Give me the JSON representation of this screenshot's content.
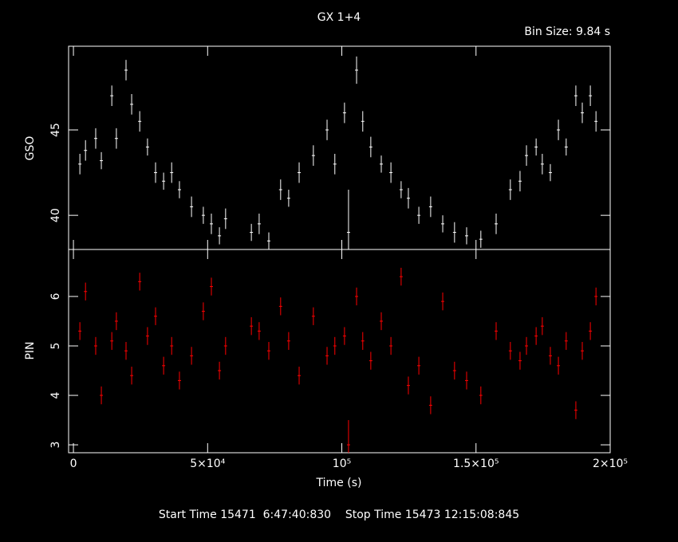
{
  "chart_data": [
    {
      "type": "errorbar",
      "title": "GX 1+4",
      "subtitle": "Bin Size: 9.84 s",
      "ylabel": "GSO",
      "color": "#ffffff",
      "xlim": [
        -1800,
        200000
      ],
      "ylim": [
        38,
        49.9
      ],
      "yticks": [
        40,
        45
      ],
      "x": [
        2400,
        4500,
        8300,
        10400,
        14300,
        16000,
        19600,
        21700,
        24700,
        27600,
        30600,
        33600,
        36600,
        39500,
        44000,
        48400,
        51400,
        54400,
        56700,
        66300,
        69200,
        72800,
        77200,
        80200,
        84100,
        89400,
        94500,
        97400,
        101000,
        102500,
        105500,
        107800,
        110800,
        114700,
        118300,
        122100,
        124800,
        128700,
        133100,
        137600,
        142000,
        146500,
        151800,
        157500,
        162800,
        166400,
        168800,
        172400,
        174700,
        177700,
        180700,
        183600,
        187200,
        189600,
        192600,
        194700
      ],
      "values": [
        43,
        43.8,
        44.5,
        43.2,
        47,
        44.5,
        48.5,
        46.5,
        45.5,
        44,
        42.5,
        42,
        42.5,
        41.5,
        40.5,
        40,
        39.5,
        38.8,
        39.8,
        39,
        39.5,
        38.5,
        41.5,
        41,
        42.5,
        43.5,
        45,
        43,
        46,
        39,
        48.5,
        45.5,
        44,
        43,
        42.5,
        41.5,
        41,
        40,
        40.5,
        39.5,
        39,
        38.8,
        38.6,
        39.5,
        41.5,
        42,
        43.5,
        44,
        43,
        42.5,
        45,
        44,
        47,
        46,
        47,
        45.5
      ],
      "errors": [
        0.6,
        0.6,
        0.6,
        0.5,
        0.6,
        0.6,
        0.6,
        0.6,
        0.6,
        0.5,
        0.6,
        0.5,
        0.6,
        0.5,
        0.6,
        0.5,
        0.6,
        0.5,
        0.6,
        0.5,
        0.6,
        0.5,
        0.6,
        0.5,
        0.6,
        0.6,
        0.6,
        0.6,
        0.6,
        2.5,
        0.8,
        0.6,
        0.6,
        0.5,
        0.6,
        0.5,
        0.6,
        0.5,
        0.6,
        0.5,
        0.6,
        0.5,
        0.5,
        0.6,
        0.6,
        0.6,
        0.6,
        0.5,
        0.6,
        0.5,
        0.6,
        0.5,
        0.6,
        0.6,
        0.6,
        0.6
      ]
    },
    {
      "type": "errorbar",
      "ylabel": "PIN",
      "xlabel": "Time (s)",
      "color": "#ff0000",
      "annotation": "Start Time 15471  6:47:40:830    Stop Time 15473 12:15:08:845",
      "xlim": [
        -1800,
        200000
      ],
      "ylim": [
        2.84,
        6.95
      ],
      "yticks": [
        3,
        4,
        5,
        6
      ],
      "xticks": [
        0,
        {
          "value": 50000,
          "label": "5×10⁴"
        },
        {
          "value": 100000,
          "label": "10⁵"
        },
        {
          "value": 150000,
          "label": "1.5×10⁵"
        },
        {
          "value": 200000,
          "label": "2×10⁵"
        }
      ],
      "x": [
        2400,
        4500,
        8300,
        10400,
        14300,
        16000,
        19600,
        21700,
        24700,
        27600,
        30600,
        33600,
        36600,
        39500,
        44000,
        48400,
        51400,
        54400,
        56700,
        66300,
        69200,
        72800,
        77200,
        80200,
        84100,
        89400,
        94500,
        97400,
        101000,
        102500,
        105500,
        107800,
        110800,
        114700,
        118300,
        122100,
        124800,
        128700,
        133100,
        137600,
        142000,
        146500,
        151800,
        157500,
        162800,
        166400,
        168800,
        172400,
        174700,
        177700,
        180700,
        183600,
        187200,
        189600,
        192600,
        194700
      ],
      "values": [
        5.3,
        6.1,
        5.0,
        4.0,
        5.1,
        5.5,
        4.9,
        4.4,
        6.3,
        5.2,
        5.6,
        4.6,
        5.0,
        4.3,
        4.8,
        5.7,
        6.2,
        4.5,
        5.0,
        5.4,
        5.3,
        4.9,
        5.8,
        5.1,
        4.4,
        5.6,
        4.8,
        5.0,
        5.2,
        3.0,
        6.0,
        5.1,
        4.7,
        5.5,
        5.0,
        6.4,
        4.2,
        4.6,
        3.8,
        5.9,
        4.5,
        4.3,
        4.0,
        5.3,
        4.9,
        4.7,
        5.0,
        5.2,
        5.4,
        4.8,
        4.6,
        5.1,
        3.7,
        4.9,
        5.3,
        6.0
      ],
      "errors": [
        0.18,
        0.18,
        0.18,
        0.18,
        0.18,
        0.18,
        0.18,
        0.18,
        0.18,
        0.18,
        0.18,
        0.18,
        0.18,
        0.18,
        0.18,
        0.18,
        0.18,
        0.18,
        0.18,
        0.18,
        0.18,
        0.18,
        0.18,
        0.18,
        0.18,
        0.18,
        0.18,
        0.18,
        0.18,
        0.5,
        0.18,
        0.18,
        0.18,
        0.18,
        0.18,
        0.18,
        0.18,
        0.18,
        0.18,
        0.18,
        0.18,
        0.18,
        0.18,
        0.18,
        0.18,
        0.18,
        0.18,
        0.18,
        0.18,
        0.18,
        0.18,
        0.18,
        0.18,
        0.18,
        0.18,
        0.18
      ]
    }
  ]
}
